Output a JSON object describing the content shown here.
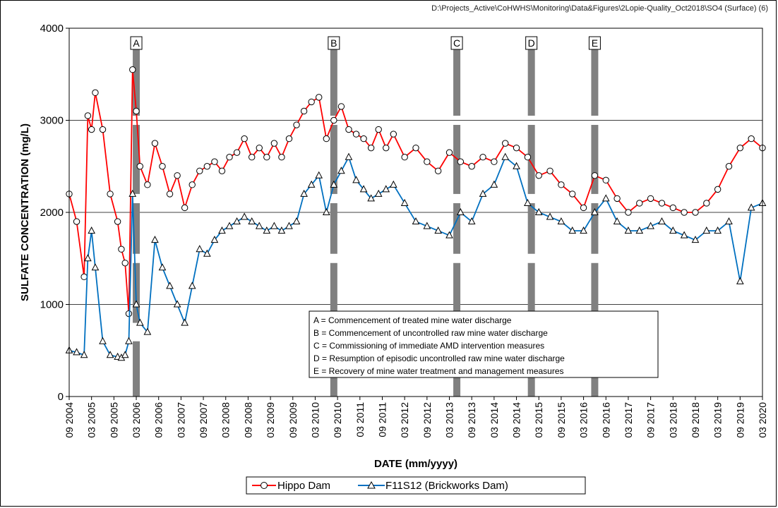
{
  "file_path": "D:\\Projects_Active\\CoHWHS\\Monitoring\\Data&Figures\\2Lopie-Quality_Oct2018\\SO4  (Surface) (6)",
  "chart_data": {
    "type": "line",
    "xlabel": "DATE  (mm/yyyy)",
    "ylabel": "SULFATE  CONCENTRATION  (mg/L)",
    "ylim": [
      0,
      4000
    ],
    "y_ticks": [
      0,
      1000,
      2000,
      3000,
      4000
    ],
    "xlim": [
      "2004-09",
      "2020-03"
    ],
    "x_tick_labels": [
      "09 2004",
      "03 2005",
      "09 2005",
      "03 2006",
      "09 2006",
      "03 2007",
      "09 2007",
      "03 2008",
      "09 2008",
      "03 2009",
      "09 2009",
      "03 2010",
      "09 2010",
      "03 2011",
      "09 2011",
      "03 2012",
      "09 2012",
      "03 2013",
      "09 2013",
      "03 2014",
      "09 2014",
      "03 2015",
      "09 2015",
      "03 2016",
      "09 2016",
      "03 2017",
      "09 2017",
      "03 2018",
      "09 2018",
      "03 2019",
      "09 2019",
      "03 2020"
    ],
    "grid": "horizontal",
    "legend_position": "bottom",
    "series": [
      {
        "name": "Hippo Dam",
        "color": "#ff0000",
        "marker": "circle",
        "x": [
          "2004-09",
          "2004-11",
          "2005-01",
          "2005-02",
          "2005-03",
          "2005-04",
          "2005-06",
          "2005-08",
          "2005-10",
          "2005-11",
          "2005-12",
          "2006-01",
          "2006-02",
          "2006-03",
          "2006-04",
          "2006-06",
          "2006-08",
          "2006-10",
          "2006-12",
          "2007-02",
          "2007-04",
          "2007-06",
          "2007-08",
          "2007-10",
          "2007-12",
          "2008-02",
          "2008-04",
          "2008-06",
          "2008-08",
          "2008-10",
          "2008-12",
          "2009-02",
          "2009-04",
          "2009-06",
          "2009-08",
          "2009-10",
          "2009-12",
          "2010-02",
          "2010-04",
          "2010-06",
          "2010-08",
          "2010-10",
          "2010-12",
          "2011-02",
          "2011-04",
          "2011-06",
          "2011-08",
          "2011-10",
          "2011-12",
          "2012-03",
          "2012-06",
          "2012-09",
          "2012-12",
          "2013-03",
          "2013-06",
          "2013-09",
          "2013-12",
          "2014-03",
          "2014-06",
          "2014-09",
          "2014-12",
          "2015-03",
          "2015-06",
          "2015-09",
          "2015-12",
          "2016-03",
          "2016-06",
          "2016-09",
          "2016-12",
          "2017-03",
          "2017-06",
          "2017-09",
          "2017-12",
          "2018-03",
          "2018-06",
          "2018-09",
          "2018-12",
          "2019-03",
          "2019-06",
          "2019-09",
          "2019-12",
          "2020-03"
        ],
        "values": [
          2200,
          1900,
          1300,
          3050,
          2900,
          3300,
          2900,
          2200,
          1900,
          1600,
          1450,
          900,
          3550,
          3100,
          2500,
          2300,
          2750,
          2500,
          2200,
          2400,
          2050,
          2300,
          2450,
          2500,
          2550,
          2450,
          2600,
          2650,
          2800,
          2600,
          2700,
          2600,
          2750,
          2600,
          2800,
          2950,
          3100,
          3200,
          3250,
          2800,
          3000,
          3150,
          2900,
          2850,
          2800,
          2700,
          2900,
          2700,
          2850,
          2600,
          2700,
          2550,
          2450,
          2650,
          2550,
          2500,
          2600,
          2550,
          2750,
          2700,
          2600,
          2400,
          2450,
          2300,
          2200,
          2050,
          2400,
          2350,
          2150,
          2000,
          2100,
          2150,
          2100,
          2050,
          2000,
          2000,
          2100,
          2250,
          2500,
          2700,
          2800,
          2700
        ]
      },
      {
        "name": "F11S12 (Brickworks Dam)",
        "color": "#0070c0",
        "marker": "triangle",
        "x": [
          "2004-09",
          "2004-11",
          "2005-01",
          "2005-02",
          "2005-03",
          "2005-04",
          "2005-06",
          "2005-08",
          "2005-10",
          "2005-11",
          "2005-12",
          "2006-01",
          "2006-02",
          "2006-03",
          "2006-04",
          "2006-06",
          "2006-08",
          "2006-10",
          "2006-12",
          "2007-02",
          "2007-04",
          "2007-06",
          "2007-08",
          "2007-10",
          "2007-12",
          "2008-02",
          "2008-04",
          "2008-06",
          "2008-08",
          "2008-10",
          "2008-12",
          "2009-02",
          "2009-04",
          "2009-06",
          "2009-08",
          "2009-10",
          "2009-12",
          "2010-02",
          "2010-04",
          "2010-06",
          "2010-08",
          "2010-10",
          "2010-12",
          "2011-02",
          "2011-04",
          "2011-06",
          "2011-08",
          "2011-10",
          "2011-12",
          "2012-03",
          "2012-06",
          "2012-09",
          "2012-12",
          "2013-03",
          "2013-06",
          "2013-09",
          "2013-12",
          "2014-03",
          "2014-06",
          "2014-09",
          "2014-12",
          "2015-03",
          "2015-06",
          "2015-09",
          "2015-12",
          "2016-03",
          "2016-06",
          "2016-09",
          "2016-12",
          "2017-03",
          "2017-06",
          "2017-09",
          "2017-12",
          "2018-03",
          "2018-06",
          "2018-09",
          "2018-12",
          "2019-03",
          "2019-06",
          "2019-09",
          "2019-12",
          "2020-03"
        ],
        "values": [
          500,
          480,
          450,
          1500,
          1800,
          1400,
          600,
          450,
          430,
          420,
          450,
          600,
          2200,
          1000,
          800,
          700,
          1700,
          1400,
          1200,
          1000,
          800,
          1200,
          1600,
          1550,
          1700,
          1800,
          1850,
          1900,
          1950,
          1900,
          1850,
          1800,
          1850,
          1800,
          1850,
          1900,
          2200,
          2300,
          2400,
          2000,
          2300,
          2450,
          2600,
          2350,
          2250,
          2150,
          2200,
          2250,
          2300,
          2100,
          1900,
          1850,
          1800,
          1750,
          2000,
          1900,
          2200,
          2300,
          2600,
          2500,
          2100,
          2000,
          1950,
          1900,
          1800,
          1800,
          2000,
          2150,
          1900,
          1800,
          1800,
          1850,
          1900,
          1800,
          1750,
          1700,
          1800,
          1800,
          1900,
          1250,
          2050,
          2100
        ]
      }
    ],
    "annotations": [
      {
        "label": "A",
        "date": "2006-03"
      },
      {
        "label": "B",
        "date": "2010-08"
      },
      {
        "label": "C",
        "date": "2013-05"
      },
      {
        "label": "D",
        "date": "2015-01"
      },
      {
        "label": "E",
        "date": "2016-06"
      }
    ],
    "annotation_legend": [
      "A  =  Commencement  of treated mine water discharge",
      "B  =  Commencement  of uncontrolled raw mine water discharge",
      "C  =  Commissioning of immediate AMD intervention measures",
      "D  =  Resumption of episodic uncontrolled raw mine water discharge",
      "E  =  Recovery of mine water treatment and management measures"
    ]
  }
}
